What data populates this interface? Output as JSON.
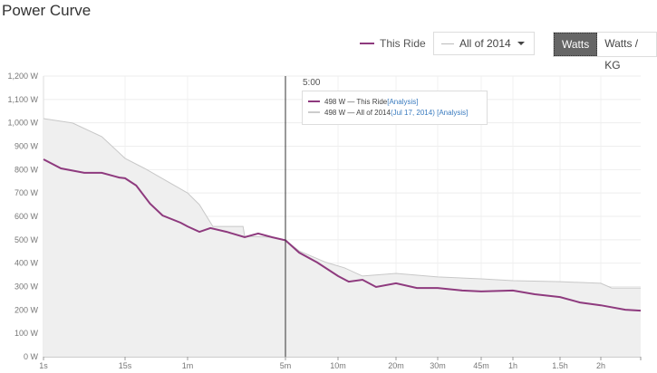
{
  "title": "Power Curve",
  "legend": {
    "this_ride": "This Ride"
  },
  "compare_select": {
    "value": "All of 2014"
  },
  "units": {
    "options": [
      "Watts",
      "Watts / KG"
    ],
    "selected": "Watts"
  },
  "colors": {
    "this_ride": "#8e3a7e",
    "compare": "#c8c8c8",
    "fill": "#efefef"
  },
  "cursor": {
    "label": "5:00"
  },
  "tooltip": {
    "ride": {
      "value": "498 W — This Ride ",
      "link": "[Analysis]"
    },
    "compare": {
      "value": "498 W — All of 2014 ",
      "date": "(Jul 17, 2014)",
      "link": "[Analysis]"
    }
  },
  "chart_data": {
    "type": "line",
    "xlabel": "",
    "ylabel": "",
    "x_ticks": [
      {
        "s": 1,
        "label": "1s"
      },
      {
        "s": 15,
        "label": "15s"
      },
      {
        "s": 60,
        "label": "1m"
      },
      {
        "s": 300,
        "label": "5m"
      },
      {
        "s": 600,
        "label": "10m"
      },
      {
        "s": 1200,
        "label": "20m"
      },
      {
        "s": 1800,
        "label": "30m"
      },
      {
        "s": 2700,
        "label": "45m"
      },
      {
        "s": 3600,
        "label": "1h"
      },
      {
        "s": 5400,
        "label": "1.5h"
      },
      {
        "s": 7200,
        "label": "2h"
      }
    ],
    "y_ticks": [
      "0 W",
      "100 W",
      "200 W",
      "300 W",
      "400 W",
      "500 W",
      "600 W",
      "700 W",
      "800 W",
      "900 W",
      "1,000 W",
      "1,100 W",
      "1,200 W"
    ],
    "ylim": [
      0,
      1200
    ],
    "grid": true,
    "cursor_x": 300,
    "series": [
      {
        "name": "All of 2014",
        "points": [
          [
            1,
            1018
          ],
          [
            6,
            999
          ],
          [
            11,
            941
          ],
          [
            15,
            848
          ],
          [
            29,
            805
          ],
          [
            60,
            700
          ],
          [
            89,
            650
          ],
          [
            122,
            557
          ],
          [
            156,
            557
          ],
          [
            196,
            557
          ],
          [
            200,
            515
          ],
          [
            267,
            511
          ],
          [
            300,
            498
          ],
          [
            378,
            452
          ],
          [
            533,
            403
          ],
          [
            666,
            380
          ],
          [
            853,
            345
          ],
          [
            1200,
            356
          ],
          [
            1800,
            341
          ],
          [
            2700,
            333
          ],
          [
            3600,
            325
          ],
          [
            5400,
            321
          ],
          [
            7200,
            314
          ],
          [
            7680,
            294
          ],
          [
            8960,
            294
          ]
        ]
      },
      {
        "name": "This Ride",
        "points": [
          [
            1,
            844
          ],
          [
            4,
            805
          ],
          [
            8,
            786
          ],
          [
            11,
            786
          ],
          [
            14,
            766
          ],
          [
            15,
            763
          ],
          [
            23,
            732
          ],
          [
            33,
            654
          ],
          [
            42,
            604
          ],
          [
            55,
            573
          ],
          [
            60,
            557
          ],
          [
            89,
            534
          ],
          [
            116,
            550
          ],
          [
            156,
            534
          ],
          [
            200,
            511
          ],
          [
            233,
            527
          ],
          [
            267,
            511
          ],
          [
            300,
            498
          ],
          [
            378,
            445
          ],
          [
            481,
            403
          ],
          [
            600,
            345
          ],
          [
            712,
            321
          ],
          [
            853,
            329
          ],
          [
            994,
            298
          ],
          [
            1200,
            314
          ],
          [
            1500,
            294
          ],
          [
            1800,
            294
          ],
          [
            2306,
            283
          ],
          [
            2700,
            279
          ],
          [
            3600,
            283
          ],
          [
            4431,
            267
          ],
          [
            5400,
            255
          ],
          [
            6280,
            232
          ],
          [
            7200,
            220
          ],
          [
            8280,
            201
          ],
          [
            8960,
            197
          ]
        ]
      }
    ]
  }
}
